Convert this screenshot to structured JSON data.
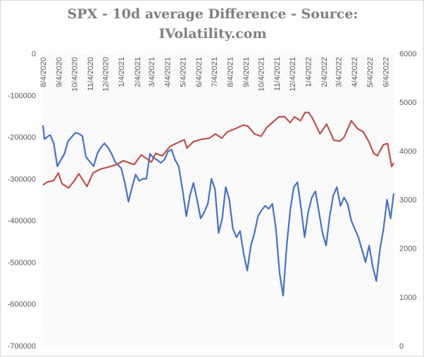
{
  "chart_data": {
    "type": "line",
    "title_line1": "SPX - 10d average Difference - Source:",
    "title_line2": "IVolatility.com",
    "xlabel": "",
    "ylabel": "",
    "y2label": "",
    "ylim": [
      -700000,
      0
    ],
    "y2lim": [
      0,
      6000
    ],
    "grid": "hatched plot area",
    "legend": "none",
    "y_ticks": [
      "0",
      "-100000",
      "-200000",
      "-300000",
      "-400000",
      "-500000",
      "-600000",
      "-700000"
    ],
    "y2_ticks": [
      "6000",
      "5000",
      "4000",
      "3000",
      "2000",
      "1000",
      "0"
    ],
    "x_tick_labels": [
      "8/4/2020",
      "9/4/2020",
      "10/4/2020",
      "11/4/2020",
      "12/4/2020",
      "1/4/2021",
      "2/4/2021",
      "3/4/2021",
      "4/4/2021",
      "5/4/2021",
      "6/4/2021",
      "7/4/2021",
      "8/4/2021",
      "9/4/2021",
      "10/4/2021",
      "11/4/2021",
      "12/4/2021",
      "1/4/2022",
      "2/4/2022",
      "3/4/2022",
      "4/4/2022",
      "5/4/2022",
      "6/4/2022"
    ],
    "series": [
      {
        "axis": "left",
        "color": "#4472c4",
        "x": [
          "2020-08-04",
          "2020-08-07",
          "2020-08-12",
          "2020-08-18",
          "2020-08-25",
          "2020-09-01",
          "2020-09-08",
          "2020-09-15",
          "2020-09-22",
          "2020-09-29",
          "2020-10-06",
          "2020-10-13",
          "2020-10-20",
          "2020-10-27",
          "2020-11-04",
          "2020-11-11",
          "2020-11-18",
          "2020-11-25",
          "2020-12-02",
          "2020-12-09",
          "2020-12-16",
          "2020-12-23",
          "2021-01-04",
          "2021-01-11",
          "2021-01-18",
          "2021-01-25",
          "2021-02-01",
          "2021-02-08",
          "2021-02-15",
          "2021-02-22",
          "2021-03-01",
          "2021-03-08",
          "2021-03-15",
          "2021-03-22",
          "2021-03-29",
          "2021-04-05",
          "2021-04-12",
          "2021-04-19",
          "2021-04-26",
          "2021-05-04",
          "2021-05-11",
          "2021-05-18",
          "2021-05-25",
          "2021-06-01",
          "2021-06-08",
          "2021-06-15",
          "2021-06-22",
          "2021-06-29",
          "2021-07-06",
          "2021-07-13",
          "2021-07-20",
          "2021-07-27",
          "2021-08-03",
          "2021-08-10",
          "2021-08-17",
          "2021-08-24",
          "2021-08-31",
          "2021-09-07",
          "2021-09-14",
          "2021-09-21",
          "2021-09-28",
          "2021-10-05",
          "2021-10-12",
          "2021-10-19",
          "2021-10-26",
          "2021-11-02",
          "2021-11-09",
          "2021-11-16",
          "2021-11-23",
          "2021-11-30",
          "2021-12-07",
          "2021-12-14",
          "2021-12-21",
          "2021-12-28",
          "2022-01-04",
          "2022-01-11",
          "2022-01-18",
          "2022-01-25",
          "2022-02-01",
          "2022-02-08",
          "2022-02-15",
          "2022-02-22",
          "2022-03-01",
          "2022-03-08",
          "2022-03-15",
          "2022-03-22",
          "2022-03-29",
          "2022-04-05",
          "2022-04-12",
          "2022-04-19",
          "2022-04-26",
          "2022-05-03",
          "2022-05-10",
          "2022-05-17",
          "2022-05-24",
          "2022-05-31",
          "2022-06-07",
          "2022-06-14",
          "2022-06-20"
        ],
        "values": [
          -172000,
          -205000,
          -200000,
          -195000,
          -215000,
          -270000,
          -255000,
          -240000,
          -210000,
          -200000,
          -190000,
          -192000,
          -198000,
          -248000,
          -260000,
          -270000,
          -240000,
          -225000,
          -215000,
          -225000,
          -240000,
          -260000,
          -275000,
          -310000,
          -355000,
          -320000,
          -290000,
          -305000,
          -300000,
          -300000,
          -240000,
          -250000,
          -255000,
          -262000,
          -255000,
          -235000,
          -230000,
          -255000,
          -270000,
          -330000,
          -390000,
          -340000,
          -310000,
          -350000,
          -395000,
          -380000,
          -360000,
          -300000,
          -325000,
          -430000,
          -395000,
          -320000,
          -350000,
          -420000,
          -440000,
          -425000,
          -480000,
          -520000,
          -460000,
          -430000,
          -390000,
          -375000,
          -365000,
          -372000,
          -360000,
          -420000,
          -525000,
          -580000,
          -460000,
          -375000,
          -320000,
          -308000,
          -370000,
          -440000,
          -380000,
          -345000,
          -330000,
          -380000,
          -430000,
          -460000,
          -390000,
          -340000,
          -320000,
          -365000,
          -345000,
          -360000,
          -400000,
          -420000,
          -440000,
          -470000,
          -500000,
          -460000,
          -510000,
          -545000,
          -470000,
          -420000,
          -350000,
          -395000,
          -335000
        ]
      },
      {
        "axis": "right",
        "color": "#c0504d",
        "x": [
          "2020-08-04",
          "2020-08-12",
          "2020-08-25",
          "2020-09-03",
          "2020-09-10",
          "2020-09-23",
          "2020-10-05",
          "2020-10-13",
          "2020-10-29",
          "2020-11-10",
          "2020-11-25",
          "2020-12-10",
          "2020-12-28",
          "2021-01-08",
          "2021-01-29",
          "2021-02-12",
          "2021-03-04",
          "2021-03-12",
          "2021-03-25",
          "2021-04-09",
          "2021-04-20",
          "2021-05-07",
          "2021-05-12",
          "2021-05-25",
          "2021-06-10",
          "2021-06-25",
          "2021-07-07",
          "2021-07-19",
          "2021-07-30",
          "2021-08-13",
          "2021-08-30",
          "2021-09-08",
          "2021-09-21",
          "2021-10-04",
          "2021-10-15",
          "2021-10-29",
          "2021-11-08",
          "2021-11-19",
          "2021-11-30",
          "2021-12-08",
          "2021-12-20",
          "2021-12-29",
          "2022-01-05",
          "2022-01-13",
          "2022-01-27",
          "2022-02-09",
          "2022-02-23",
          "2022-03-07",
          "2022-03-15",
          "2022-03-29",
          "2022-04-11",
          "2022-04-21",
          "2022-05-03",
          "2022-05-12",
          "2022-05-19",
          "2022-05-31",
          "2022-06-08",
          "2022-06-16",
          "2022-06-20"
        ],
        "values": [
          3300,
          3360,
          3390,
          3550,
          3330,
          3240,
          3400,
          3530,
          3270,
          3550,
          3630,
          3670,
          3730,
          3800,
          3720,
          3920,
          3770,
          3950,
          3900,
          4090,
          4150,
          4230,
          4060,
          4190,
          4240,
          4260,
          4350,
          4260,
          4390,
          4450,
          4530,
          4510,
          4350,
          4300,
          4480,
          4610,
          4700,
          4700,
          4580,
          4700,
          4620,
          4790,
          4790,
          4660,
          4350,
          4550,
          4220,
          4200,
          4280,
          4620,
          4450,
          4400,
          4180,
          3950,
          3900,
          4130,
          4150,
          3680,
          3750
        ]
      }
    ]
  }
}
